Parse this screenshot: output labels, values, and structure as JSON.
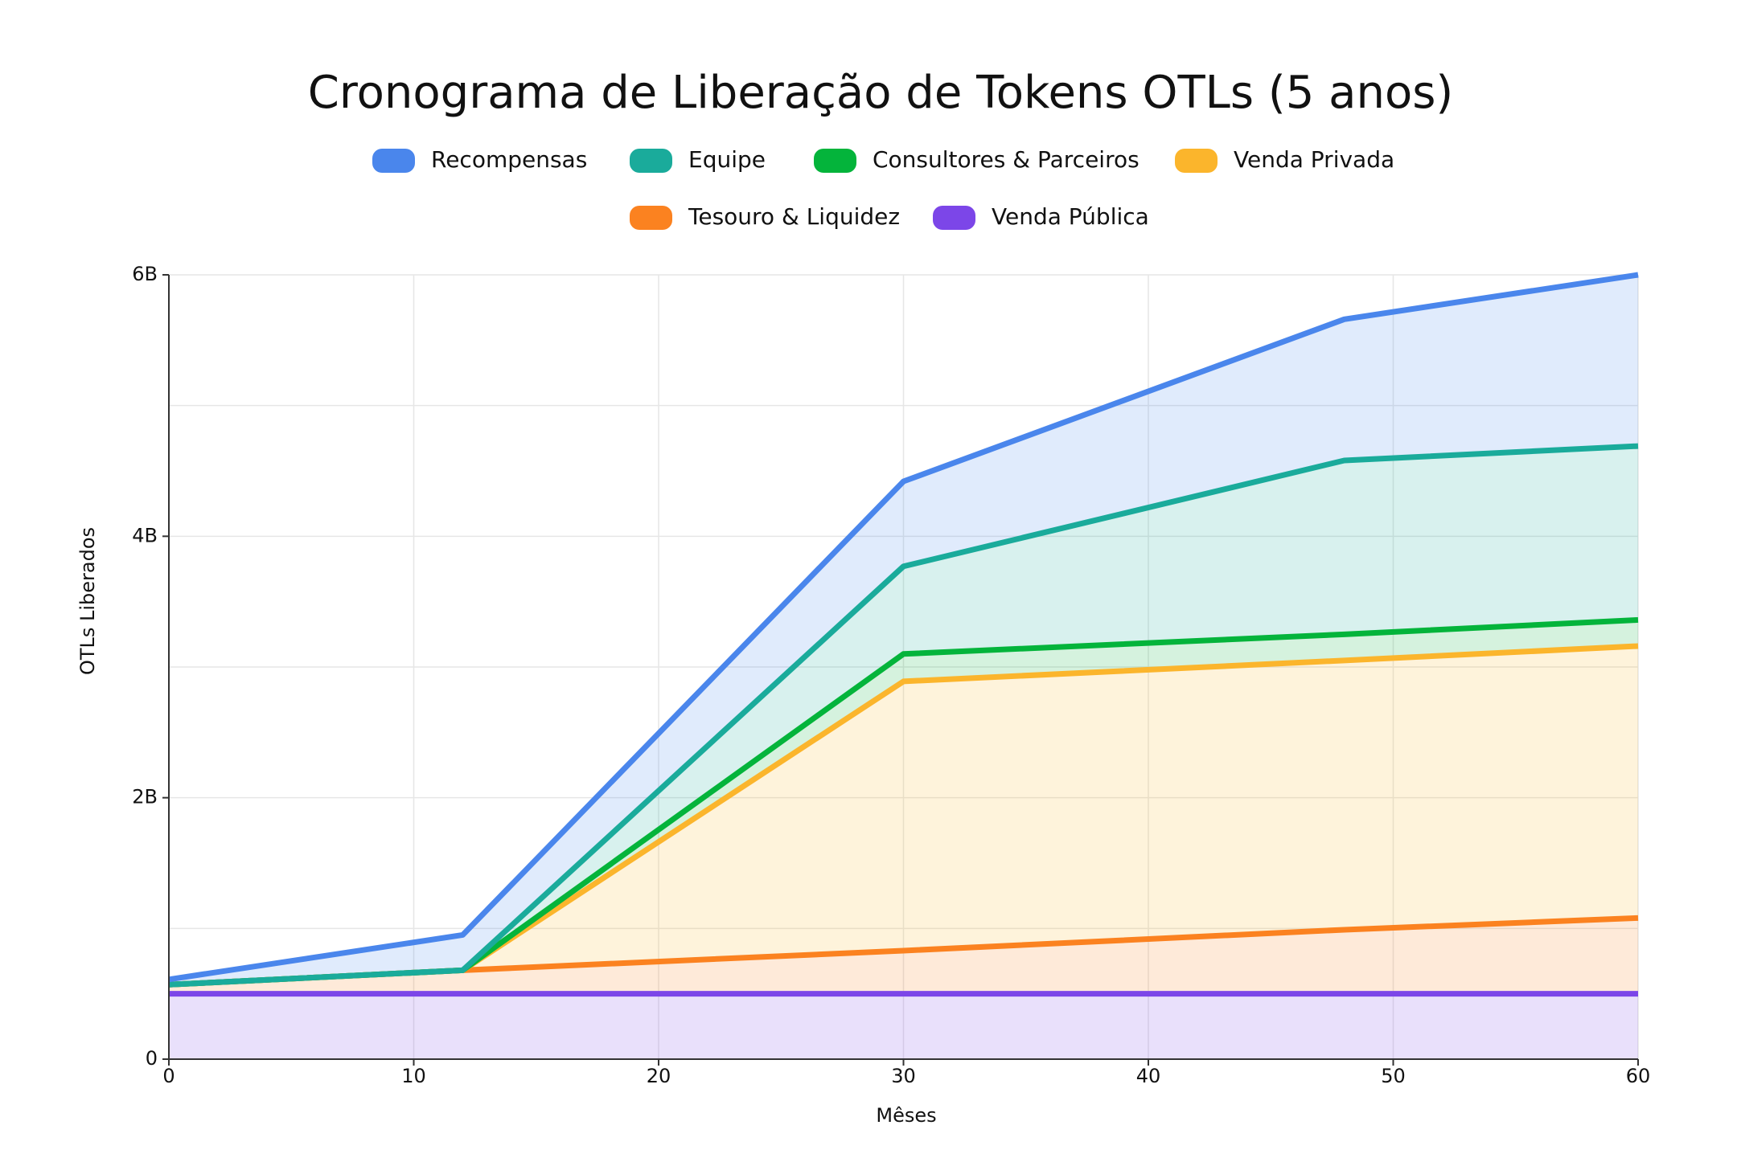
{
  "chart_data": {
    "type": "stacked_area",
    "title": "Cronograma de Liberação de Tokens OTLs (5 anos)",
    "x_label": "Mêses",
    "y_label": "OTLs Liberados",
    "x": [
      0,
      12,
      30,
      48,
      60
    ],
    "series": [
      {
        "name": "Recompensas",
        "color": "#4a86ec",
        "values": [
          40000000,
          270000000,
          650000000,
          1080000000,
          1310000000
        ]
      },
      {
        "name": "Equipe",
        "color": "#1aab9b",
        "values": [
          0,
          0,
          670000000,
          1330000000,
          1330000000
        ]
      },
      {
        "name": "Consultores & Parceiros",
        "color": "#04b43b",
        "values": [
          0,
          0,
          210000000,
          200000000,
          200000000
        ]
      },
      {
        "name": "Venda Privada",
        "color": "#fbb52c",
        "values": [
          0,
          0,
          2060000000,
          2060000000,
          2080000000
        ]
      },
      {
        "name": "Tesouro & Liquidez",
        "color": "#fb8220",
        "values": [
          70000000,
          180000000,
          330000000,
          490000000,
          580000000
        ]
      },
      {
        "name": "Venda Pública",
        "color": "#7c46e8",
        "values": [
          500000000,
          500000000,
          500000000,
          500000000,
          500000000
        ]
      }
    ],
    "xlim": [
      0,
      60
    ],
    "xticks": [
      0,
      10,
      20,
      30,
      40,
      50,
      60
    ],
    "ylim": [
      0,
      6000000000
    ],
    "yticks": [
      0,
      {
        "value": 2000000000,
        "label": "2B"
      },
      {
        "value": 4000000000,
        "label": "4B"
      },
      {
        "value": 6000000000,
        "label": "6B"
      }
    ],
    "y_minor_grid": [
      1000000000,
      3000000000,
      5000000000
    ],
    "grid": true,
    "legend": "top"
  }
}
